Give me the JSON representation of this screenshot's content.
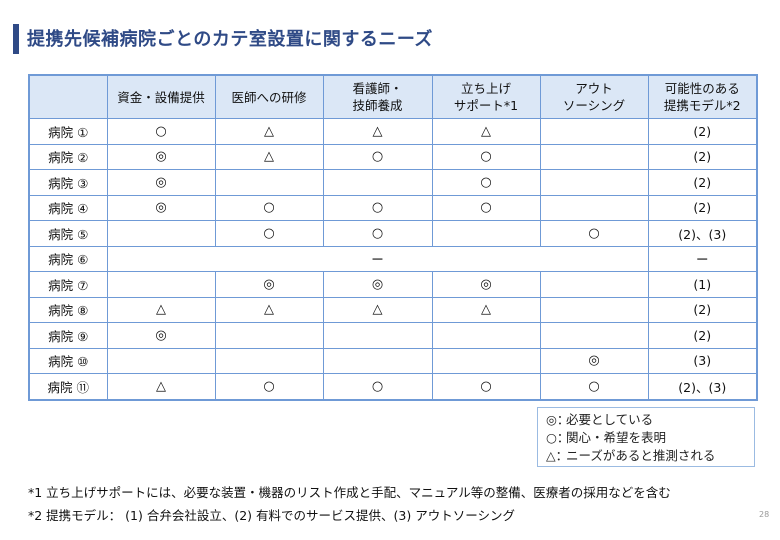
{
  "title": "提携先候補病院ごとのカテ室設置に関するニーズ",
  "table": {
    "headers": [
      {
        "line1": "",
        "line2": ""
      },
      {
        "line1": "資金・設備提供",
        "line2": ""
      },
      {
        "line1": "医師への研修",
        "line2": ""
      },
      {
        "line1": "看護師・",
        "line2": "技師養成"
      },
      {
        "line1": "立ち上げ",
        "line2": "サポート*1"
      },
      {
        "line1": "アウト",
        "line2": "ソーシング"
      },
      {
        "line1": "可能性のある",
        "line2": "提携モデル*2"
      }
    ],
    "rows": [
      {
        "hospital": "病院 ①",
        "cells": [
          "○",
          "△",
          "△",
          "△",
          ""
        ],
        "model": "(2)"
      },
      {
        "hospital": "病院 ②",
        "cells": [
          "◎",
          "△",
          "○",
          "○",
          ""
        ],
        "model": "(2)"
      },
      {
        "hospital": "病院 ③",
        "cells": [
          "◎",
          "",
          "",
          "○",
          ""
        ],
        "model": "(2)"
      },
      {
        "hospital": "病院 ④",
        "cells": [
          "◎",
          "○",
          "○",
          "○",
          ""
        ],
        "model": "(2)"
      },
      {
        "hospital": "病院 ⑤",
        "cells": [
          "",
          "○",
          "○",
          "",
          "○"
        ],
        "model": "(2)、(3)"
      },
      {
        "hospital": "病院 ⑥",
        "merged": "ー",
        "model": "ー"
      },
      {
        "hospital": "病院 ⑦",
        "cells": [
          "",
          "◎",
          "◎",
          "◎",
          ""
        ],
        "model": "(1)"
      },
      {
        "hospital": "病院 ⑧",
        "cells": [
          "△",
          "△",
          "△",
          "△",
          ""
        ],
        "model": "(2)"
      },
      {
        "hospital": "病院 ⑨",
        "cells": [
          "◎",
          "",
          "",
          "",
          ""
        ],
        "model": "(2)"
      },
      {
        "hospital": "病院 ⑩",
        "cells": [
          "",
          "",
          "",
          "",
          "◎"
        ],
        "model": "(3)"
      },
      {
        "hospital": "病院 ⑪",
        "cells": [
          "△",
          "○",
          "○",
          "○",
          "○"
        ],
        "model": "(2)、(3)"
      }
    ]
  },
  "legend": [
    {
      "symbol": "◎：",
      "text": "必要としている"
    },
    {
      "symbol": "○：",
      "text": "関心・希望を表明"
    },
    {
      "symbol": "△：",
      "text": "ニーズがあると推測される"
    }
  ],
  "notes": {
    "note1": "*1 立ち上げサポートには、必要な装置・機器のリスト作成と手配、マニュアル等の整備、医療者の採用などを含む",
    "note2": "*2 提携モデル： (1) 合弁会社設立、(2) 有料でのサービス提供、(3) アウトソーシング"
  },
  "page_number": "28",
  "colors": {
    "accent": "#2f4a86",
    "table_border": "#6f9ad6",
    "header_fill": "#dbe7f6"
  }
}
